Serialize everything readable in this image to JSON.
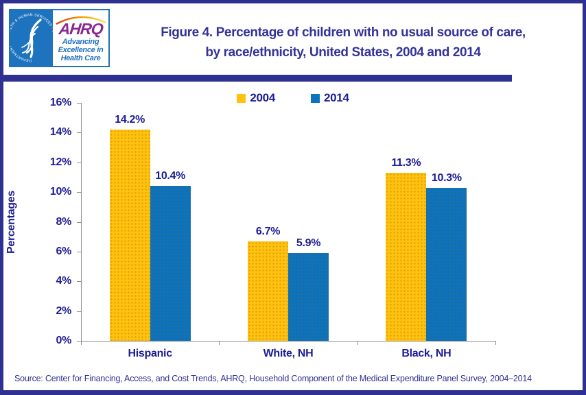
{
  "header": {
    "title_line1": "Figure 4. Percentage of children with no usual source of care,",
    "title_line2": "by race/ethnicity, United States, 2004 and 2014",
    "logo": {
      "hhs_seal_text": "DEPARTMENT OF HEALTH & HUMAN SERVICES - USA",
      "ahrq_acronym": "AHRQ",
      "tagline_line1": "Advancing",
      "tagline_line2": "Excellence in",
      "tagline_line3": "Health Care"
    }
  },
  "chart_data": {
    "type": "bar",
    "title": "Figure 4. Percentage of children with no usual source of care, by race/ethnicity, United States, 2004 and 2014",
    "categories": [
      "Hispanic",
      "White, NH",
      "Black, NH"
    ],
    "series": [
      {
        "name": "2004",
        "color": "#FFC20E",
        "values": [
          14.2,
          6.7,
          11.3
        ],
        "labels": [
          "14.2%",
          "6.7%",
          "11.3%"
        ]
      },
      {
        "name": "2014",
        "color": "#0C74BE",
        "values": [
          10.4,
          5.9,
          10.3
        ],
        "labels": [
          "10.4%",
          "5.9%",
          "10.3%"
        ]
      }
    ],
    "xlabel": "",
    "ylabel": "Percentages",
    "ylim": [
      0,
      16
    ],
    "ytick_step": 2,
    "ytick_labels": [
      "0%",
      "2%",
      "4%",
      "6%",
      "8%",
      "10%",
      "12%",
      "14%",
      "16%"
    ],
    "grid": false,
    "legend_position": "top-center"
  },
  "footer": {
    "source": "Source: Center for Financing, Access, and Cost Trends, AHRQ, Household Component of the Medical Expenditure Panel Survey,  2004–2014"
  },
  "colors": {
    "page_border": "#2E3192",
    "title_text": "#333399",
    "chart_text": "#1C1C94",
    "axis": "#8C8C8C",
    "series_2004": "#FFC20E",
    "series_2014": "#0C74BE",
    "hhs_blue": "#1E73BE",
    "ahrq_purple": "#8A2890"
  }
}
